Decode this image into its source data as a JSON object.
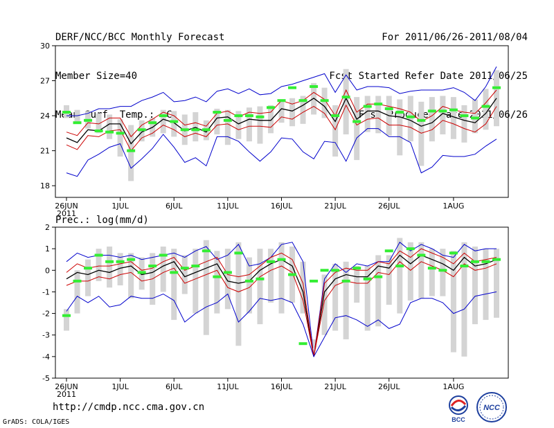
{
  "header": {
    "title": "DERF/NCC/BCC Monthly Forecast",
    "member_size": "Member Size=40",
    "top_variable": "Mean Surf. Temp.: °C",
    "period": "For 2011/06/26-2011/08/04",
    "fcst_started": "Fcst Started Refer Date 2011/06/25",
    "fcst_produced": "Fcst Produced Date 2011/06/26"
  },
  "footer": {
    "url": "http://cmdp.ncc.cma.gov.cn",
    "grads": "GrADS: COLA/IGES",
    "logo_bcc": "BCC",
    "logo_ncc": "NCC"
  },
  "chart_data": [
    {
      "type": "line",
      "title": "Mean Surf. Temp.: °C",
      "ylim": [
        17,
        30
      ],
      "yticks": [
        18,
        21,
        24,
        27,
        30
      ],
      "xticks": [
        {
          "day": 1,
          "label": "26JUN"
        },
        {
          "day": 6,
          "label": "1JUL"
        },
        {
          "day": 11,
          "label": "6JUL"
        },
        {
          "day": 16,
          "label": "11JUL"
        },
        {
          "day": 21,
          "label": "16JUL"
        },
        {
          "day": 26,
          "label": "21JUL"
        },
        {
          "day": 31,
          "label": "26JUL"
        },
        {
          "day": 37,
          "label": "1AUG"
        }
      ],
      "year_label": "2011",
      "series": [
        {
          "name": "max",
          "color": "#0000cc",
          "values": [
            19.1,
            18.8,
            20.2,
            20.7,
            21.3,
            21.6,
            19.5,
            20.3,
            21.2,
            22.4,
            21.3,
            20.0,
            20.4,
            19.7,
            22.2,
            22.2,
            21.8,
            20.9,
            20.1,
            20.9,
            22.1,
            22.0,
            20.9,
            20.3,
            21.8,
            21.7,
            20.1,
            22.1,
            22.9,
            22.9,
            22.2,
            22.2,
            21.7,
            19.1,
            19.6,
            20.6,
            20.5,
            20.5,
            20.7,
            21.4,
            22.0
          ]
        },
        {
          "name": "mean",
          "color": "#000000",
          "values": [
            22.1,
            21.7,
            22.8,
            22.7,
            23.3,
            23.3,
            21.6,
            22.6,
            23.0,
            23.7,
            23.4,
            22.7,
            23.0,
            22.6,
            23.8,
            23.9,
            23.3,
            23.7,
            23.6,
            23.6,
            24.6,
            24.4,
            24.9,
            25.5,
            24.8,
            23.5,
            25.5,
            23.7,
            24.4,
            24.4,
            24.0,
            23.9,
            23.6,
            23.1,
            23.4,
            24.2,
            23.9,
            23.6,
            23.4,
            24.2,
            25.5
          ]
        },
        {
          "name": "upper_std",
          "color": "#cc0000",
          "values": [
            22.6,
            22.3,
            23.4,
            23.3,
            23.8,
            23.8,
            22.2,
            23.2,
            23.7,
            24.3,
            24.0,
            23.2,
            23.4,
            23.1,
            24.2,
            24.4,
            23.9,
            24.3,
            24.2,
            24.3,
            25.3,
            25.0,
            25.3,
            26.0,
            25.4,
            24.0,
            26.2,
            24.3,
            25.0,
            25.0,
            24.8,
            24.6,
            24.3,
            23.5,
            24.0,
            24.8,
            24.5,
            24.3,
            24.2,
            25.1,
            26.2
          ]
        },
        {
          "name": "lower_std",
          "color": "#cc0000",
          "values": [
            21.5,
            21.1,
            22.3,
            22.2,
            22.7,
            22.8,
            21.0,
            22.1,
            22.5,
            23.2,
            22.8,
            22.2,
            22.5,
            22.2,
            23.2,
            23.3,
            22.8,
            23.1,
            23.1,
            23.0,
            23.9,
            23.7,
            24.3,
            24.8,
            24.2,
            22.8,
            24.9,
            23.2,
            23.7,
            23.8,
            23.2,
            23.2,
            23.0,
            22.5,
            22.8,
            23.6,
            23.3,
            22.9,
            22.6,
            23.3,
            24.8
          ]
        },
        {
          "name": "min",
          "color": "#0000cc",
          "values": [
            24.0,
            24.0,
            24.2,
            24.6,
            24.6,
            24.8,
            24.8,
            25.3,
            25.6,
            26.0,
            25.2,
            25.3,
            25.6,
            25.2,
            26.1,
            26.3,
            25.9,
            26.3,
            25.8,
            25.9,
            26.5,
            26.7,
            27.0,
            27.3,
            27.6,
            26.0,
            27.5,
            26.2,
            26.5,
            26.5,
            26.4,
            25.9,
            26.1,
            26.2,
            26.2,
            26.2,
            26.4,
            26.0,
            25.3,
            26.5,
            28.2
          ]
        }
      ],
      "bars_low": [
        23.8,
        23.5,
        22.9,
        22.5,
        22.0,
        20.5,
        18.4,
        21.8,
        22.2,
        22.5,
        22.2,
        21.5,
        21.8,
        21.9,
        22.4,
        21.5,
        22.0,
        21.8,
        21.6,
        22.5,
        23.4,
        23.1,
        23.3,
        24.1,
        23.8,
        20.5,
        22.4,
        20.2,
        22.6,
        22.5,
        22.3,
        20.6,
        21.8,
        19.7,
        21.8,
        22.4,
        22.0,
        21.7,
        22.5,
        22.8,
        23.1
      ],
      "bars_high": [
        24.9,
        24.5,
        24.4,
        24.2,
        24.1,
        23.7,
        23.2,
        23.6,
        23.8,
        24.5,
        24.4,
        24.1,
        24.3,
        23.6,
        24.6,
        24.5,
        24.4,
        24.7,
        24.8,
        24.9,
        25.4,
        25.5,
        25.7,
        26.8,
        26.4,
        24.9,
        28.0,
        25.6,
        25.7,
        25.7,
        25.7,
        25.4,
        25.7,
        25.2,
        25.6,
        25.7,
        25.6,
        24.9,
        25.4,
        26.3,
        27.9
      ],
      "control": [
        24.3,
        23.4,
        23.6,
        22.7,
        22.6,
        22.5,
        21.0,
        22.8,
        23.4,
        24.0,
        23.5,
        22.8,
        22.8,
        22.8,
        24.3,
        23.6,
        24.0,
        24.0,
        23.9,
        24.7,
        25.3,
        26.4,
        25.3,
        26.5,
        25.3,
        24.0,
        25.6,
        23.5,
        24.8,
        25.0,
        24.6,
        24.3,
        23.9,
        23.6,
        24.4,
        24.4,
        24.5,
        24.0,
        23.8,
        24.8,
        26.4
      ]
    },
    {
      "type": "line",
      "title": "Prec.: log(mm/d)",
      "ylim": [
        -5,
        2
      ],
      "yticks": [
        -5,
        -4,
        -3,
        -2,
        -1,
        0,
        1,
        2
      ],
      "xticks": [
        {
          "day": 1,
          "label": "26JUN"
        },
        {
          "day": 6,
          "label": "1JUL"
        },
        {
          "day": 11,
          "label": "6JUL"
        },
        {
          "day": 16,
          "label": "11JUL"
        },
        {
          "day": 21,
          "label": "16JUL"
        },
        {
          "day": 26,
          "label": "21JUL"
        },
        {
          "day": 31,
          "label": "26JUL"
        },
        {
          "day": 37,
          "label": "1AUG"
        }
      ],
      "year_label": "2011",
      "series": [
        {
          "name": "max",
          "color": "#0000cc",
          "values": [
            0.4,
            0.8,
            0.6,
            0.7,
            0.7,
            0.6,
            0.7,
            0.5,
            0.6,
            0.7,
            0.8,
            0.6,
            0.9,
            1.1,
            0.5,
            0.7,
            1.2,
            0.2,
            0.3,
            0.6,
            1.2,
            1.3,
            0.4,
            -4.0,
            -0.4,
            0.3,
            -0.1,
            0.3,
            0.2,
            0.4,
            0.4,
            1.3,
            0.9,
            1.2,
            1.0,
            0.7,
            0.6,
            1.2,
            0.9,
            1.0,
            1.0
          ]
        },
        {
          "name": "mean",
          "color": "#000000",
          "values": [
            -0.4,
            -0.1,
            -0.2,
            0.0,
            -0.1,
            0.1,
            0.2,
            -0.2,
            -0.1,
            0.2,
            0.4,
            -0.3,
            -0.1,
            0.1,
            0.3,
            -0.5,
            -0.6,
            -0.5,
            0.0,
            0.3,
            0.5,
            0.2,
            -1.0,
            -4.0,
            -1.0,
            -0.4,
            -0.2,
            -0.3,
            -0.3,
            0.2,
            0.1,
            0.7,
            0.3,
            0.7,
            0.5,
            0.3,
            0.0,
            0.6,
            0.2,
            0.3,
            0.5
          ]
        },
        {
          "name": "upper_std",
          "color": "#cc0000",
          "values": [
            -0.1,
            0.3,
            0.1,
            0.2,
            0.2,
            0.3,
            0.4,
            0.0,
            0.1,
            0.4,
            0.6,
            0.0,
            0.2,
            0.4,
            0.6,
            -0.2,
            -0.3,
            -0.2,
            0.2,
            0.6,
            0.8,
            0.5,
            -0.6,
            -4.0,
            -0.6,
            -0.1,
            0.1,
            0.0,
            0.0,
            0.4,
            0.3,
            0.9,
            0.6,
            1.0,
            0.8,
            0.6,
            0.3,
            0.8,
            0.4,
            0.5,
            0.6
          ]
        },
        {
          "name": "lower_std",
          "color": "#cc0000",
          "values": [
            -0.7,
            -0.5,
            -0.5,
            -0.3,
            -0.4,
            -0.2,
            -0.1,
            -0.5,
            -0.4,
            -0.1,
            0.1,
            -0.6,
            -0.4,
            -0.2,
            0.0,
            -0.8,
            -1.0,
            -0.8,
            -0.3,
            0.0,
            0.2,
            -0.1,
            -1.4,
            -4.0,
            -1.4,
            -0.7,
            -0.5,
            -0.6,
            -0.6,
            -0.1,
            -0.2,
            0.4,
            0.0,
            0.4,
            0.2,
            0.0,
            -0.3,
            0.3,
            0.0,
            0.1,
            0.3
          ]
        },
        {
          "name": "min",
          "color": "#0000cc",
          "values": [
            -1.9,
            -1.2,
            -1.5,
            -1.2,
            -1.7,
            -1.6,
            -1.2,
            -1.3,
            -1.3,
            -1.1,
            -1.4,
            -2.4,
            -2.0,
            -1.7,
            -1.5,
            -1.1,
            -2.4,
            -1.9,
            -1.3,
            -1.4,
            -1.3,
            -1.5,
            -2.5,
            -4.0,
            -3.1,
            -2.2,
            -2.1,
            -2.3,
            -2.6,
            -2.3,
            -2.7,
            -2.5,
            -1.5,
            -1.3,
            -1.3,
            -1.5,
            -2.0,
            -1.8,
            -1.2,
            -1.1,
            -1.0
          ]
        }
      ],
      "bars_low": [
        -2.8,
        -2.0,
        -1.2,
        -0.5,
        -0.8,
        -0.7,
        -1.3,
        -0.9,
        -1.6,
        -1.0,
        -2.3,
        -1.1,
        -2.0,
        -3.0,
        -2.0,
        -1.8,
        -3.5,
        -2.0,
        -2.5,
        -1.5,
        -2.0,
        -1.5,
        -2.0,
        -3.6,
        -3.0,
        -2.8,
        -3.2,
        -1.5,
        -2.8,
        -2.6,
        -1.6,
        -2.0,
        -1.4,
        -1.3,
        -1.2,
        -1.2,
        -3.8,
        -4.0,
        -2.5,
        -2.3,
        -2.2
      ],
      "bars_high": [
        -1.8,
        0.0,
        0.5,
        1.0,
        1.1,
        0.8,
        0.8,
        0.6,
        0.8,
        1.1,
        1.0,
        0.7,
        1.0,
        1.4,
        0.9,
        1.0,
        1.3,
        0.6,
        1.0,
        1.0,
        1.3,
        1.1,
        0.4,
        -3.2,
        -0.2,
        0.3,
        0.4,
        0.2,
        0.2,
        0.7,
        0.7,
        1.5,
        1.3,
        1.3,
        1.0,
        1.0,
        0.9,
        1.3,
        1.1,
        1.0,
        1.0
      ],
      "control": [
        -2.1,
        -0.5,
        0.1,
        0.7,
        0.4,
        0.4,
        0.5,
        -0.1,
        0.2,
        0.7,
        -0.1,
        0.1,
        0.2,
        0.9,
        -0.3,
        -0.1,
        0.8,
        -0.5,
        -0.4,
        0.4,
        0.5,
        -0.2,
        -3.4,
        -0.5,
        0.0,
        0.0,
        -0.5,
        0.1,
        -0.4,
        -0.3,
        0.9,
        0.2,
        1.0,
        0.7,
        0.1,
        0.0,
        0.8,
        0.2,
        0.4,
        0.4,
        0.5
      ]
    }
  ]
}
